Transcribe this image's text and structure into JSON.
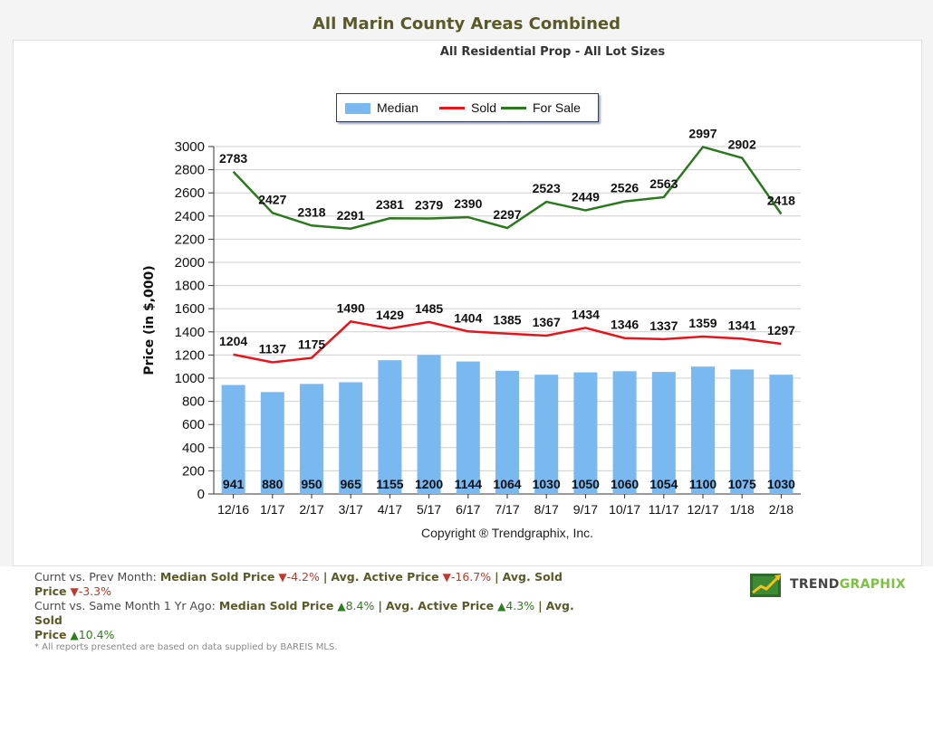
{
  "header": {
    "title": "All Marin County Areas Combined"
  },
  "chart_data": {
    "type": "bar",
    "title": "All Residential Prop - All Lot Sizes",
    "xlabel": "",
    "ylabel": "Price (in $,000)",
    "ylim": [
      0,
      3000
    ],
    "yticks": [
      0,
      200,
      400,
      600,
      800,
      1000,
      1200,
      1400,
      1600,
      1800,
      2000,
      2200,
      2400,
      2600,
      2800,
      3000
    ],
    "grid": true,
    "legend_position": "top-center",
    "categories": [
      "12/16",
      "1/17",
      "2/17",
      "3/17",
      "4/17",
      "5/17",
      "6/17",
      "7/17",
      "8/17",
      "9/17",
      "10/17",
      "11/17",
      "12/17",
      "1/18",
      "2/18"
    ],
    "series": [
      {
        "name": "Median",
        "type": "bar",
        "color": "#7ab8f0",
        "values": [
          941,
          880,
          950,
          965,
          1155,
          1200,
          1144,
          1064,
          1030,
          1050,
          1060,
          1054,
          1100,
          1075,
          1030
        ]
      },
      {
        "name": "Sold",
        "type": "line",
        "color": "#e8141b",
        "values": [
          1204,
          1137,
          1175,
          1490,
          1429,
          1485,
          1404,
          1385,
          1367,
          1434,
          1346,
          1337,
          1359,
          1341,
          1297
        ]
      },
      {
        "name": "For Sale",
        "type": "line",
        "color": "#2a7a1d",
        "values": [
          2783,
          2427,
          2318,
          2291,
          2381,
          2379,
          2390,
          2297,
          2523,
          2449,
          2526,
          2563,
          2997,
          2902,
          2418
        ]
      }
    ],
    "copyright": "Copyright ® Trendgraphix, Inc."
  },
  "stats": {
    "prev_month_label": "Curnt vs. Prev Month:",
    "same_month_label": "Curnt vs. Same Month 1 Yr Ago:",
    "median_sold_label": "Median Sold Price",
    "avg_active_label": "Avg. Active Price",
    "avg_sold_label_a": "Avg. Sold",
    "avg_sold_label_b": "Price",
    "separator": "|",
    "prev_median_sold": "-4.2%",
    "prev_avg_active": "-16.7%",
    "prev_avg_sold": "-3.3%",
    "yoy_median_sold": "8.4%",
    "yoy_avg_active": "4.3%",
    "yoy_avg_sold": "10.4%",
    "down_color": "#c0392b",
    "up_color": "#2e7d1e"
  },
  "footnote": "* All reports presented are based on data supplied by BAREIS MLS.",
  "logo": {
    "part1": "TREND",
    "part2": "GRAPHIX",
    "color1": "#444444",
    "color2": "#7cc242"
  }
}
